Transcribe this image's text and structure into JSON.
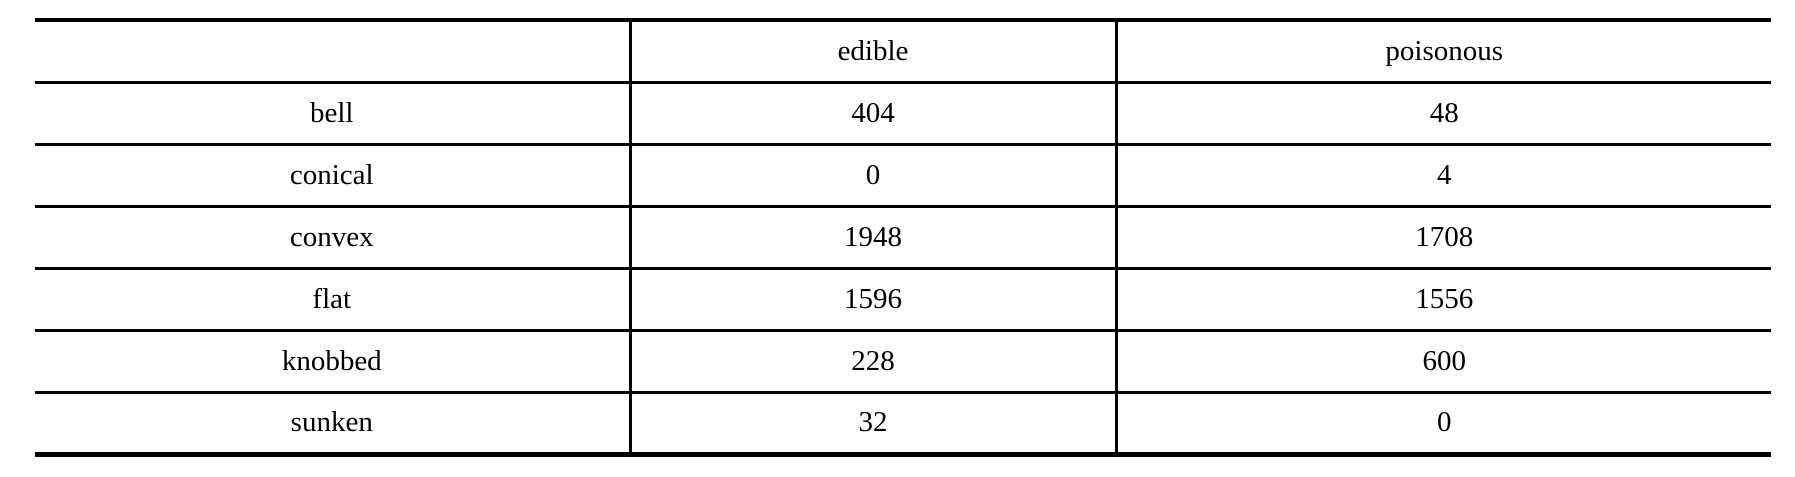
{
  "table": {
    "columns": [
      "",
      "edible",
      "poisonous"
    ],
    "rows": [
      [
        "bell",
        "404",
        "48"
      ],
      [
        "conical",
        "0",
        "4"
      ],
      [
        "convex",
        "1948",
        "1708"
      ],
      [
        "flat",
        "1596",
        "1556"
      ],
      [
        "knobbed",
        "228",
        "600"
      ],
      [
        "sunken",
        "32",
        "0"
      ]
    ]
  },
  "chart_data": {
    "type": "table",
    "title": "",
    "categories": [
      "bell",
      "conical",
      "convex",
      "flat",
      "knobbed",
      "sunken"
    ],
    "series": [
      {
        "name": "edible",
        "values": [
          404,
          0,
          1948,
          1596,
          228,
          32
        ]
      },
      {
        "name": "poisonous",
        "values": [
          48,
          4,
          1708,
          1556,
          600,
          0
        ]
      }
    ]
  },
  "colors": {
    "background": "#ffffff",
    "text": "#000000",
    "border": "#000000"
  }
}
